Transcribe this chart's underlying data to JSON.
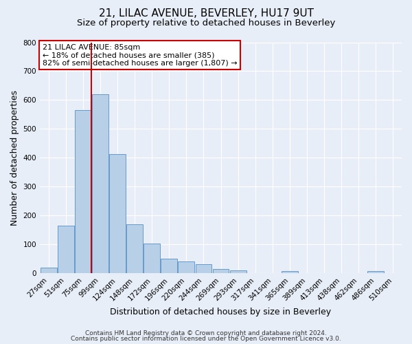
{
  "title": "21, LILAC AVENUE, BEVERLEY, HU17 9UT",
  "subtitle": "Size of property relative to detached houses in Beverley",
  "xlabel": "Distribution of detached houses by size in Beverley",
  "ylabel": "Number of detached properties",
  "categories": [
    "27sqm",
    "51sqm",
    "75sqm",
    "99sqm",
    "124sqm",
    "148sqm",
    "172sqm",
    "196sqm",
    "220sqm",
    "244sqm",
    "269sqm",
    "293sqm",
    "317sqm",
    "341sqm",
    "365sqm",
    "389sqm",
    "413sqm",
    "438sqm",
    "462sqm",
    "486sqm",
    "510sqm"
  ],
  "values": [
    20,
    165,
    565,
    620,
    413,
    170,
    103,
    50,
    40,
    32,
    14,
    9,
    0,
    0,
    6,
    0,
    0,
    0,
    0,
    8,
    0
  ],
  "bar_color": "#b8cfe8",
  "bar_edge_color": "#6699cc",
  "vline_color": "#cc0000",
  "vline_xindex": 2.5,
  "annotation_text": "21 LILAC AVENUE: 85sqm\n← 18% of detached houses are smaller (385)\n82% of semi-detached houses are larger (1,807) →",
  "annotation_box_facecolor": "#ffffff",
  "annotation_box_edgecolor": "#cc0000",
  "ylim": [
    0,
    800
  ],
  "yticks": [
    0,
    100,
    200,
    300,
    400,
    500,
    600,
    700,
    800
  ],
  "footer1": "Contains HM Land Registry data © Crown copyright and database right 2024.",
  "footer2": "Contains public sector information licensed under the Open Government Licence v3.0.",
  "bg_color": "#e8eef8",
  "grid_color": "#ffffff",
  "title_fontsize": 11,
  "subtitle_fontsize": 9.5,
  "axis_label_fontsize": 9,
  "tick_fontsize": 7.5,
  "annotation_fontsize": 8,
  "footer_fontsize": 6.5
}
